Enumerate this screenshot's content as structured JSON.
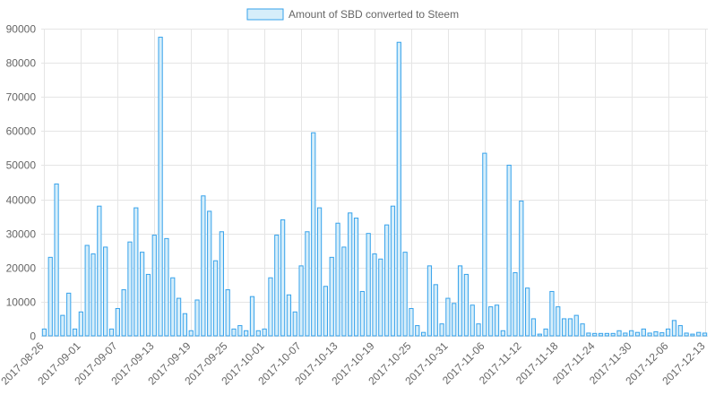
{
  "legend": {
    "label": "Amount of SBD converted to Steem"
  },
  "colors": {
    "bar_fill": "#d6eefa",
    "bar_stroke": "#36a2eb",
    "grid": "#e5e5e5",
    "text": "#666666"
  },
  "chart_data": {
    "type": "bar",
    "ylim": [
      0,
      90000
    ],
    "y_ticks": [
      0,
      10000,
      20000,
      30000,
      40000,
      50000,
      60000,
      70000,
      80000,
      90000
    ],
    "x_tick_labels": [
      "2017-08-26",
      "2017-09-01",
      "2017-09-07",
      "2017-09-13",
      "2017-09-19",
      "2017-09-25",
      "2017-10-01",
      "2017-10-07",
      "2017-10-13",
      "2017-10-19",
      "2017-10-25",
      "2017-10-31",
      "2017-11-06",
      "2017-11-12",
      "2017-11-18",
      "2017-11-24",
      "2017-11-30",
      "2017-12-06",
      "2017-12-13"
    ],
    "grid": true,
    "legend_position": "top-center",
    "series": [
      {
        "name": "Amount of SBD converted to Steem",
        "values": [
          2000,
          23000,
          44500,
          6000,
          12500,
          2000,
          7000,
          26500,
          24000,
          38000,
          26000,
          2000,
          8000,
          13500,
          27500,
          37500,
          24500,
          18000,
          29500,
          87500,
          28500,
          17000,
          11000,
          6500,
          1500,
          10500,
          41000,
          36500,
          22000,
          30500,
          13500,
          2000,
          3000,
          1500,
          11500,
          1500,
          2000,
          17000,
          29500,
          34000,
          12000,
          7000,
          20500,
          30500,
          59500,
          37500,
          14500,
          23000,
          33000,
          26000,
          36000,
          34500,
          13000,
          30000,
          24000,
          22500,
          32500,
          38000,
          86000,
          24500,
          8000,
          3000,
          1000,
          20500,
          15000,
          3500,
          11000,
          9500,
          20500,
          18000,
          9000,
          3500,
          53500,
          8500,
          9000,
          1500,
          50000,
          18500,
          39500,
          14000,
          5000,
          500,
          2000,
          13000,
          8500,
          5000,
          5000,
          6000,
          3500,
          800,
          700,
          700,
          700,
          700,
          1500,
          800,
          1500,
          1000,
          2000,
          800,
          1200,
          900,
          2000,
          4500,
          3000,
          800,
          500,
          1000,
          800
        ]
      }
    ]
  }
}
